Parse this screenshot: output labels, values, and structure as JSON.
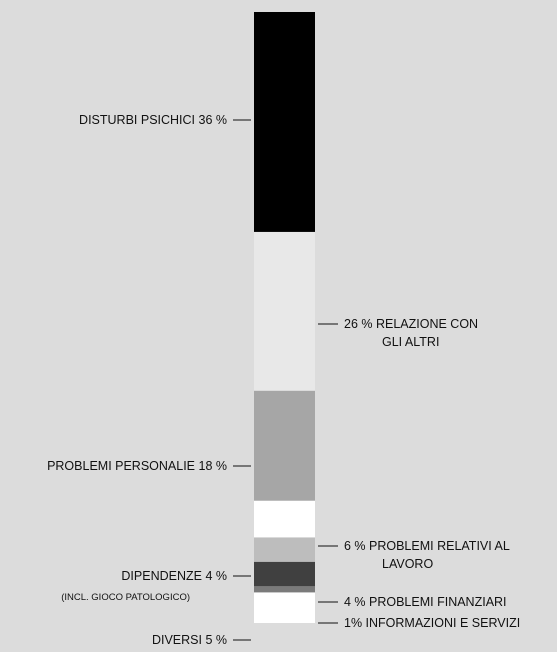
{
  "chart_data": {
    "type": "stacked-bar",
    "orientation": "vertical",
    "total": 100,
    "unit": "%",
    "segments": [
      {
        "name": "DISTURBI PSICHICI",
        "value": 36,
        "value_text": "36 %",
        "color": "#000000",
        "side": "left",
        "lines": [
          "DISTURBI PSICHICI 36 %"
        ],
        "sub": ""
      },
      {
        "name": "RELAZIONE CON GLI ALTRI",
        "value": 26,
        "value_text": "26 %",
        "color": "#e8e8e8",
        "side": "right",
        "lines": [
          "26 %  RELAZIONE CON",
          "GLI ALTRI"
        ],
        "sub": ""
      },
      {
        "name": "PROBLEMI PERSONALIE",
        "value": 18,
        "value_text": "18 %",
        "color": "#a6a6a6",
        "side": "left",
        "lines": [
          "PROBLEMI PERSONALIE 18 %"
        ],
        "sub": ""
      },
      {
        "name": "PROBLEMI RELATIVI AL LAVORO",
        "value": 6,
        "value_text": "6 %",
        "color": "#ffffff",
        "side": "right",
        "lines": [
          "6 %  PROBLEMI RELATIVI AL",
          "LAVORO"
        ],
        "sub": ""
      },
      {
        "name": "DIPENDENZE",
        "value": 4,
        "value_text": "4 %",
        "color": "#bdbdbd",
        "side": "left",
        "lines": [
          "DIPENDENZE   4 %"
        ],
        "sub": "(INCL. GIOCO PATOLOGICO)"
      },
      {
        "name": "PROBLEMI FINANZIARI",
        "value": 4,
        "value_text": "4 %",
        "color": "#404040",
        "side": "right",
        "lines": [
          "4 %  PROBLEMI FINANZIARI"
        ],
        "sub": ""
      },
      {
        "name": "INFORMAZIONI E SERVIZI",
        "value": 1,
        "value_text": "1%",
        "color": "#7a7a7a",
        "side": "right",
        "lines": [
          "1%  INFORMAZIONI E SERVIZI"
        ],
        "sub": ""
      },
      {
        "name": "DIVERSI",
        "value": 5,
        "value_text": "5 %",
        "color": "#ffffff",
        "side": "left",
        "lines": [
          "DIVERSI   5 %"
        ],
        "sub": ""
      }
    ]
  }
}
